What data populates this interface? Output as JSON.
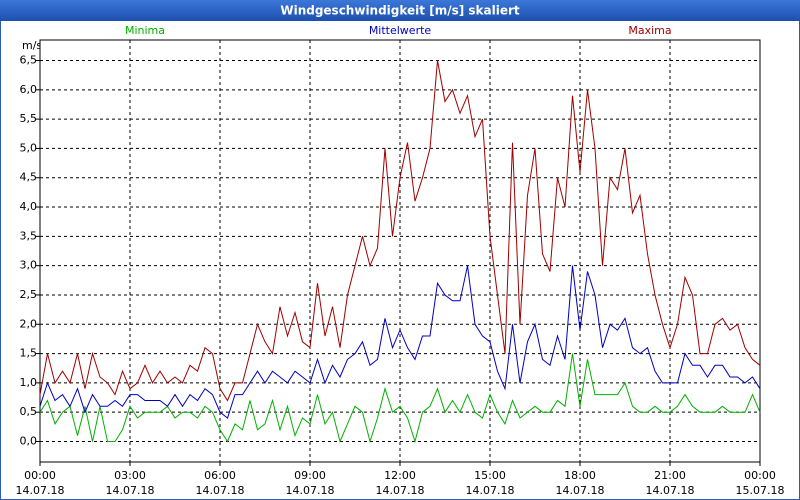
{
  "chart_data": {
    "type": "line",
    "title": "Windgeschwindigkeit [m/s] skaliert",
    "y_unit": "m/s",
    "grid": true,
    "x": [
      0,
      0.25,
      0.5,
      0.75,
      1,
      1.25,
      1.5,
      1.75,
      2,
      2.25,
      2.5,
      2.75,
      3,
      3.25,
      3.5,
      3.75,
      4,
      4.25,
      4.5,
      4.75,
      5,
      5.25,
      5.5,
      5.75,
      6,
      6.25,
      6.5,
      6.75,
      7,
      7.25,
      7.5,
      7.75,
      8,
      8.25,
      8.5,
      8.75,
      9,
      9.25,
      9.5,
      9.75,
      10,
      10.25,
      10.5,
      10.75,
      11,
      11.25,
      11.5,
      11.75,
      12,
      12.25,
      12.5,
      12.75,
      13,
      13.25,
      13.5,
      13.75,
      14,
      14.25,
      14.5,
      14.75,
      15,
      15.25,
      15.5,
      15.75,
      16,
      16.25,
      16.5,
      16.75,
      17,
      17.25,
      17.5,
      17.75,
      18,
      18.25,
      18.5,
      18.75,
      19,
      19.25,
      19.5,
      19.75,
      20,
      20.25,
      20.5,
      20.75,
      21,
      21.25,
      21.5,
      21.75,
      22,
      22.25,
      22.5,
      22.75,
      23,
      23.25,
      23.5,
      23.75,
      24
    ],
    "xlim": [
      0,
      24
    ],
    "xticks": [
      {
        "value": 0,
        "label": "00:00",
        "date": "14.07.18"
      },
      {
        "value": 3,
        "label": "03:00",
        "date": "14.07.18"
      },
      {
        "value": 6,
        "label": "06:00",
        "date": "14.07.18"
      },
      {
        "value": 9,
        "label": "09:00",
        "date": "14.07.18"
      },
      {
        "value": 12,
        "label": "12:00",
        "date": "14.07.18"
      },
      {
        "value": 15,
        "label": "15:00",
        "date": "14.07.18"
      },
      {
        "value": 18,
        "label": "18:00",
        "date": "14.07.18"
      },
      {
        "value": 21,
        "label": "21:00",
        "date": "14.07.18"
      },
      {
        "value": 24,
        "label": "00:00",
        "date": "15.07.18"
      }
    ],
    "ylim": [
      -0.35,
      6.85
    ],
    "yticks": [
      {
        "value": 0,
        "label": "0,0"
      },
      {
        "value": 0.5,
        "label": "0,5"
      },
      {
        "value": 1,
        "label": "1,0"
      },
      {
        "value": 1.5,
        "label": "1,5"
      },
      {
        "value": 2,
        "label": "2,0"
      },
      {
        "value": 2.5,
        "label": "2,5"
      },
      {
        "value": 3,
        "label": "3,0"
      },
      {
        "value": 3.5,
        "label": "3,5"
      },
      {
        "value": 4,
        "label": "4,0"
      },
      {
        "value": 4.5,
        "label": "4,5"
      },
      {
        "value": 5,
        "label": "5,0"
      },
      {
        "value": 5.5,
        "label": "5,5"
      },
      {
        "value": 6,
        "label": "6,0"
      },
      {
        "value": 6.5,
        "label": "6,5"
      }
    ],
    "series": [
      {
        "name": "Minima",
        "color": "#00b000",
        "values": [
          0.5,
          0.7,
          0.3,
          0.5,
          0.6,
          0.1,
          0.6,
          0.0,
          0.6,
          0.0,
          0.0,
          0.2,
          0.6,
          0.4,
          0.5,
          0.5,
          0.5,
          0.6,
          0.4,
          0.5,
          0.5,
          0.4,
          0.6,
          0.5,
          0.2,
          0.0,
          0.3,
          0.2,
          0.7,
          0.2,
          0.3,
          0.7,
          0.2,
          0.6,
          0.1,
          0.4,
          0.3,
          0.8,
          0.3,
          0.5,
          0.0,
          0.3,
          0.6,
          0.5,
          0.0,
          0.4,
          0.9,
          0.5,
          0.6,
          0.4,
          0.0,
          0.5,
          0.6,
          0.9,
          0.5,
          0.7,
          0.5,
          0.8,
          0.5,
          0.4,
          0.8,
          0.5,
          0.3,
          0.7,
          0.4,
          0.5,
          0.6,
          0.5,
          0.5,
          0.7,
          0.6,
          1.5,
          0.6,
          1.4,
          0.8,
          0.8,
          0.8,
          0.8,
          1.0,
          0.6,
          0.5,
          0.5,
          0.6,
          0.5,
          0.5,
          0.6,
          0.8,
          0.6,
          0.5,
          0.5,
          0.5,
          0.6,
          0.5,
          0.5,
          0.5,
          0.8,
          0.5
        ]
      },
      {
        "name": "Mittelwerte",
        "color": "#0000c0",
        "values": [
          0.6,
          1.0,
          0.7,
          0.8,
          0.6,
          0.9,
          0.5,
          0.8,
          0.6,
          0.6,
          0.7,
          0.6,
          0.8,
          0.8,
          0.7,
          0.7,
          0.7,
          0.6,
          0.8,
          0.6,
          0.8,
          0.7,
          0.9,
          0.8,
          0.5,
          0.4,
          0.8,
          0.8,
          1.0,
          1.2,
          1.0,
          1.2,
          1.1,
          1.0,
          1.2,
          1.1,
          1.0,
          1.4,
          1.0,
          1.3,
          1.1,
          1.4,
          1.5,
          1.7,
          1.3,
          1.4,
          2.1,
          1.6,
          1.9,
          1.6,
          1.4,
          1.8,
          1.8,
          2.7,
          2.5,
          2.4,
          2.4,
          3.0,
          2.0,
          1.8,
          1.7,
          1.2,
          0.9,
          2.0,
          1.0,
          1.7,
          2.0,
          1.4,
          1.3,
          1.8,
          1.4,
          3.0,
          1.9,
          2.9,
          2.5,
          1.6,
          2.0,
          1.9,
          2.1,
          1.6,
          1.5,
          1.6,
          1.2,
          1.0,
          1.0,
          1.0,
          1.5,
          1.3,
          1.3,
          1.1,
          1.3,
          1.3,
          1.1,
          1.1,
          1.0,
          1.1,
          0.9
        ]
      },
      {
        "name": "Maxima",
        "color": "#a00000",
        "values": [
          0.8,
          1.5,
          1.0,
          1.2,
          1.0,
          1.5,
          0.9,
          1.5,
          1.1,
          1.0,
          0.8,
          1.2,
          0.9,
          1.0,
          1.3,
          1.0,
          1.2,
          1.0,
          1.1,
          1.0,
          1.3,
          1.2,
          1.6,
          1.5,
          0.9,
          0.7,
          1.0,
          1.0,
          1.5,
          2.0,
          1.7,
          1.5,
          2.3,
          1.8,
          2.2,
          1.7,
          1.6,
          2.7,
          1.8,
          2.3,
          1.6,
          2.5,
          3.0,
          3.5,
          3.0,
          3.3,
          5.0,
          3.5,
          4.5,
          5.1,
          4.1,
          4.5,
          5.0,
          6.5,
          5.8,
          6.0,
          5.6,
          5.9,
          5.2,
          5.5,
          3.5,
          2.5,
          1.5,
          5.1,
          2.0,
          4.2,
          5.0,
          3.2,
          2.9,
          4.5,
          4.0,
          5.9,
          4.6,
          6.0,
          5.0,
          3.0,
          4.5,
          4.3,
          5.0,
          3.9,
          4.2,
          3.2,
          2.5,
          2.0,
          1.6,
          2.0,
          2.8,
          2.5,
          1.5,
          1.5,
          2.0,
          2.1,
          1.9,
          2.0,
          1.6,
          1.4,
          1.3
        ]
      }
    ]
  }
}
